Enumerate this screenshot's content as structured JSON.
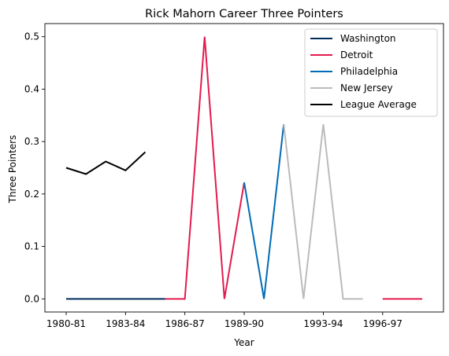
{
  "chart_data": {
    "type": "line",
    "title": "Rick Mahorn Career Three Pointers",
    "xlabel": "Year",
    "ylabel": "Three Pointers",
    "x_categories": [
      "1980-81",
      "1981-82",
      "1982-83",
      "1983-84",
      "1984-85",
      "1985-86",
      "1986-87",
      "1987-88",
      "1988-89",
      "1989-90",
      "1990-91",
      "1991-92",
      "1992-93",
      "1993-94",
      "1994-95",
      "1995-96",
      "1996-97",
      "1997-98",
      "1998-99"
    ],
    "x_ticks": [
      "1980-81",
      "1983-84",
      "1986-87",
      "1989-90",
      "1993-94",
      "1996-97"
    ],
    "y_ticks": [
      "0.0",
      "0.1",
      "0.2",
      "0.3",
      "0.4",
      "0.5"
    ],
    "ylim": [
      -0.025,
      0.525
    ],
    "legend_position": "top-right",
    "grid": false,
    "series": [
      {
        "name": "Washington",
        "color": "#002B5C",
        "points": [
          [
            "1980-81",
            0
          ],
          [
            "1981-82",
            0
          ],
          [
            "1982-83",
            0
          ],
          [
            "1983-84",
            0
          ],
          [
            "1984-85",
            0
          ],
          [
            "1985-86",
            0
          ]
        ]
      },
      {
        "name": "Detroit",
        "color": "#E31B4F",
        "points": [
          [
            "1985-86",
            0
          ],
          [
            "1986-87",
            0
          ],
          [
            "1987-88",
            0.5
          ],
          [
            "1988-89",
            0
          ],
          [
            "1989-90",
            0.222
          ]
        ]
      },
      {
        "name": "Philadelphia",
        "color": "#006BB6",
        "points": [
          [
            "1989-90",
            0.222
          ],
          [
            "1990-91",
            0
          ],
          [
            "1991-92",
            0.333
          ]
        ]
      },
      {
        "name": "New Jersey",
        "color": "#BBBBBB",
        "points": [
          [
            "1991-92",
            0.333
          ],
          [
            "1992-93",
            0
          ],
          [
            "1993-94",
            0.333
          ],
          [
            "1994-95",
            0
          ],
          [
            "1995-96",
            0
          ]
        ]
      },
      {
        "name": "Detroit",
        "color": "#E31B4F",
        "legend": false,
        "points": [
          [
            "1996-97",
            0
          ],
          [
            "1997-98",
            0
          ],
          [
            "1998-99",
            0
          ]
        ]
      },
      {
        "name": "League Average",
        "color": "#000000",
        "points": [
          [
            "1980-81",
            0.25
          ],
          [
            "1981-82",
            0.238
          ],
          [
            "1982-83",
            0.262
          ],
          [
            "1983-84",
            0.245
          ],
          [
            "1984-85",
            0.28
          ]
        ]
      }
    ]
  }
}
